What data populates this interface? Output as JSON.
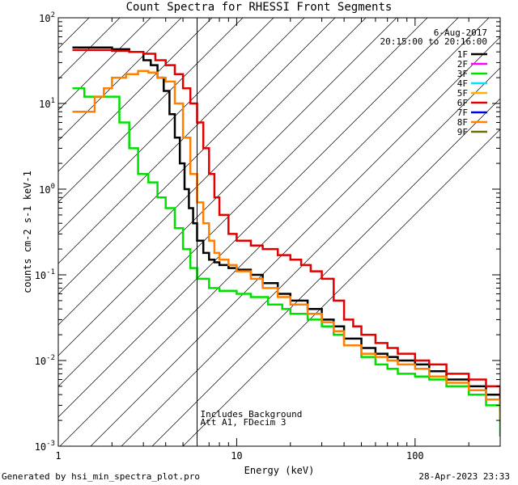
{
  "chart_data": {
    "type": "line",
    "title": "Count Spectra for RHESSI Front Segments",
    "xlabel": "Energy (keV)",
    "ylabel": "counts cm-2 s-1 keV-1",
    "xscale": "log",
    "yscale": "log",
    "xlim": [
      1,
      300
    ],
    "ylim": [
      0.001,
      100
    ],
    "x_tick_labels": [
      "1",
      "10",
      "100"
    ],
    "y_tick_labels": [
      {
        "value": 100,
        "base": "10",
        "exp": "2"
      },
      {
        "value": 10,
        "base": "10",
        "exp": "1"
      },
      {
        "value": 1,
        "base": "10",
        "exp": "0"
      },
      {
        "value": 0.1,
        "base": "10",
        "exp": "-1"
      },
      {
        "value": 0.01,
        "base": "10",
        "exp": "-2"
      },
      {
        "value": 0.001,
        "base": "10",
        "exp": "-3"
      }
    ],
    "date": "6-Aug-2017",
    "time_range": "20:15:00 to 20:16:00",
    "annotations": [
      "Includes Background",
      "Att A1, FDecim 3"
    ],
    "attenuator_boundary_keV": 6,
    "legend_position": "top-right",
    "legend": [
      {
        "label": "1F",
        "color": "#000000"
      },
      {
        "label": "2F",
        "color": "#ff00ff"
      },
      {
        "label": "3F",
        "color": "#00e000"
      },
      {
        "label": "4F",
        "color": "#00e0ff"
      },
      {
        "label": "5F",
        "color": "#ffb000"
      },
      {
        "label": "6F",
        "color": "#e00000"
      },
      {
        "label": "7F",
        "color": "#0000e0"
      },
      {
        "label": "8F",
        "color": "#ff8000"
      },
      {
        "label": "9F",
        "color": "#707000"
      }
    ],
    "series": [
      {
        "name": "1F",
        "color": "#000000",
        "x": [
          1.2,
          1.5,
          2,
          2.5,
          3,
          3.3,
          3.6,
          3.9,
          4.2,
          4.5,
          4.8,
          5.1,
          5.4,
          5.7,
          6,
          6.5,
          7,
          7.5,
          8,
          9,
          10,
          12,
          14,
          17,
          20,
          25,
          30,
          35,
          40,
          50,
          60,
          70,
          80,
          100,
          120,
          150,
          200,
          250,
          300
        ],
        "y": [
          45,
          45,
          43,
          40,
          32,
          28,
          20,
          14,
          7.5,
          4,
          2,
          1,
          0.6,
          0.4,
          0.25,
          0.18,
          0.15,
          0.14,
          0.13,
          0.12,
          0.115,
          0.1,
          0.08,
          0.06,
          0.05,
          0.04,
          0.03,
          0.025,
          0.018,
          0.014,
          0.012,
          0.011,
          0.01,
          0.009,
          0.0075,
          0.006,
          0.005,
          0.004,
          0.0025
        ]
      },
      {
        "name": "3F",
        "color": "#00e000",
        "x": [
          1.2,
          1.4,
          1.6,
          2,
          2.2,
          2.5,
          2.8,
          3.2,
          3.6,
          4,
          4.5,
          5,
          5.5,
          6,
          7,
          8,
          10,
          12,
          15,
          18,
          20,
          25,
          30,
          35,
          40,
          50,
          60,
          70,
          80,
          100,
          120,
          150,
          200,
          250,
          300
        ],
        "y": [
          15,
          12,
          12,
          12,
          6,
          3,
          1.5,
          1.2,
          0.8,
          0.6,
          0.35,
          0.2,
          0.12,
          0.09,
          0.07,
          0.065,
          0.06,
          0.055,
          0.045,
          0.04,
          0.035,
          0.03,
          0.025,
          0.02,
          0.015,
          0.011,
          0.009,
          0.008,
          0.007,
          0.0065,
          0.006,
          0.005,
          0.004,
          0.003,
          0.0013
        ]
      },
      {
        "name": "6F",
        "color": "#e00000",
        "x": [
          1.2,
          1.5,
          2,
          2.5,
          3,
          3.5,
          4,
          4.5,
          5,
          5.5,
          6,
          6.5,
          7,
          7.5,
          8,
          9,
          10,
          12,
          14,
          17,
          20,
          23,
          26,
          30,
          35,
          40,
          45,
          50,
          60,
          70,
          80,
          100,
          120,
          150,
          200,
          250,
          300
        ],
        "y": [
          42,
          42,
          41,
          40,
          38,
          32,
          28,
          22,
          15,
          10,
          6,
          3,
          1.5,
          0.8,
          0.5,
          0.3,
          0.25,
          0.22,
          0.2,
          0.17,
          0.15,
          0.13,
          0.11,
          0.09,
          0.05,
          0.03,
          0.025,
          0.02,
          0.016,
          0.014,
          0.012,
          0.01,
          0.009,
          0.007,
          0.006,
          0.005,
          0.0035
        ]
      },
      {
        "name": "8F",
        "color": "#ff8000",
        "x": [
          1.2,
          1.4,
          1.6,
          1.8,
          2,
          2.4,
          2.8,
          3.2,
          3.6,
          4,
          4.5,
          5,
          5.5,
          6,
          6.5,
          7,
          7.5,
          8,
          9,
          10,
          12,
          14,
          17,
          20,
          25,
          30,
          35,
          40,
          50,
          60,
          70,
          80,
          100,
          120,
          150,
          200,
          250,
          300
        ],
        "y": [
          8,
          8,
          12,
          15,
          20,
          22,
          24,
          23,
          20,
          18,
          10,
          4,
          1.5,
          0.7,
          0.4,
          0.25,
          0.18,
          0.15,
          0.13,
          0.11,
          0.09,
          0.07,
          0.055,
          0.045,
          0.035,
          0.028,
          0.022,
          0.015,
          0.012,
          0.011,
          0.01,
          0.009,
          0.008,
          0.0065,
          0.0055,
          0.0045,
          0.0035,
          0.002
        ]
      }
    ]
  },
  "footer": {
    "generated_by": "Generated by hsi_min_spectra_plot.pro",
    "timestamp": "28-Apr-2023 23:33"
  }
}
